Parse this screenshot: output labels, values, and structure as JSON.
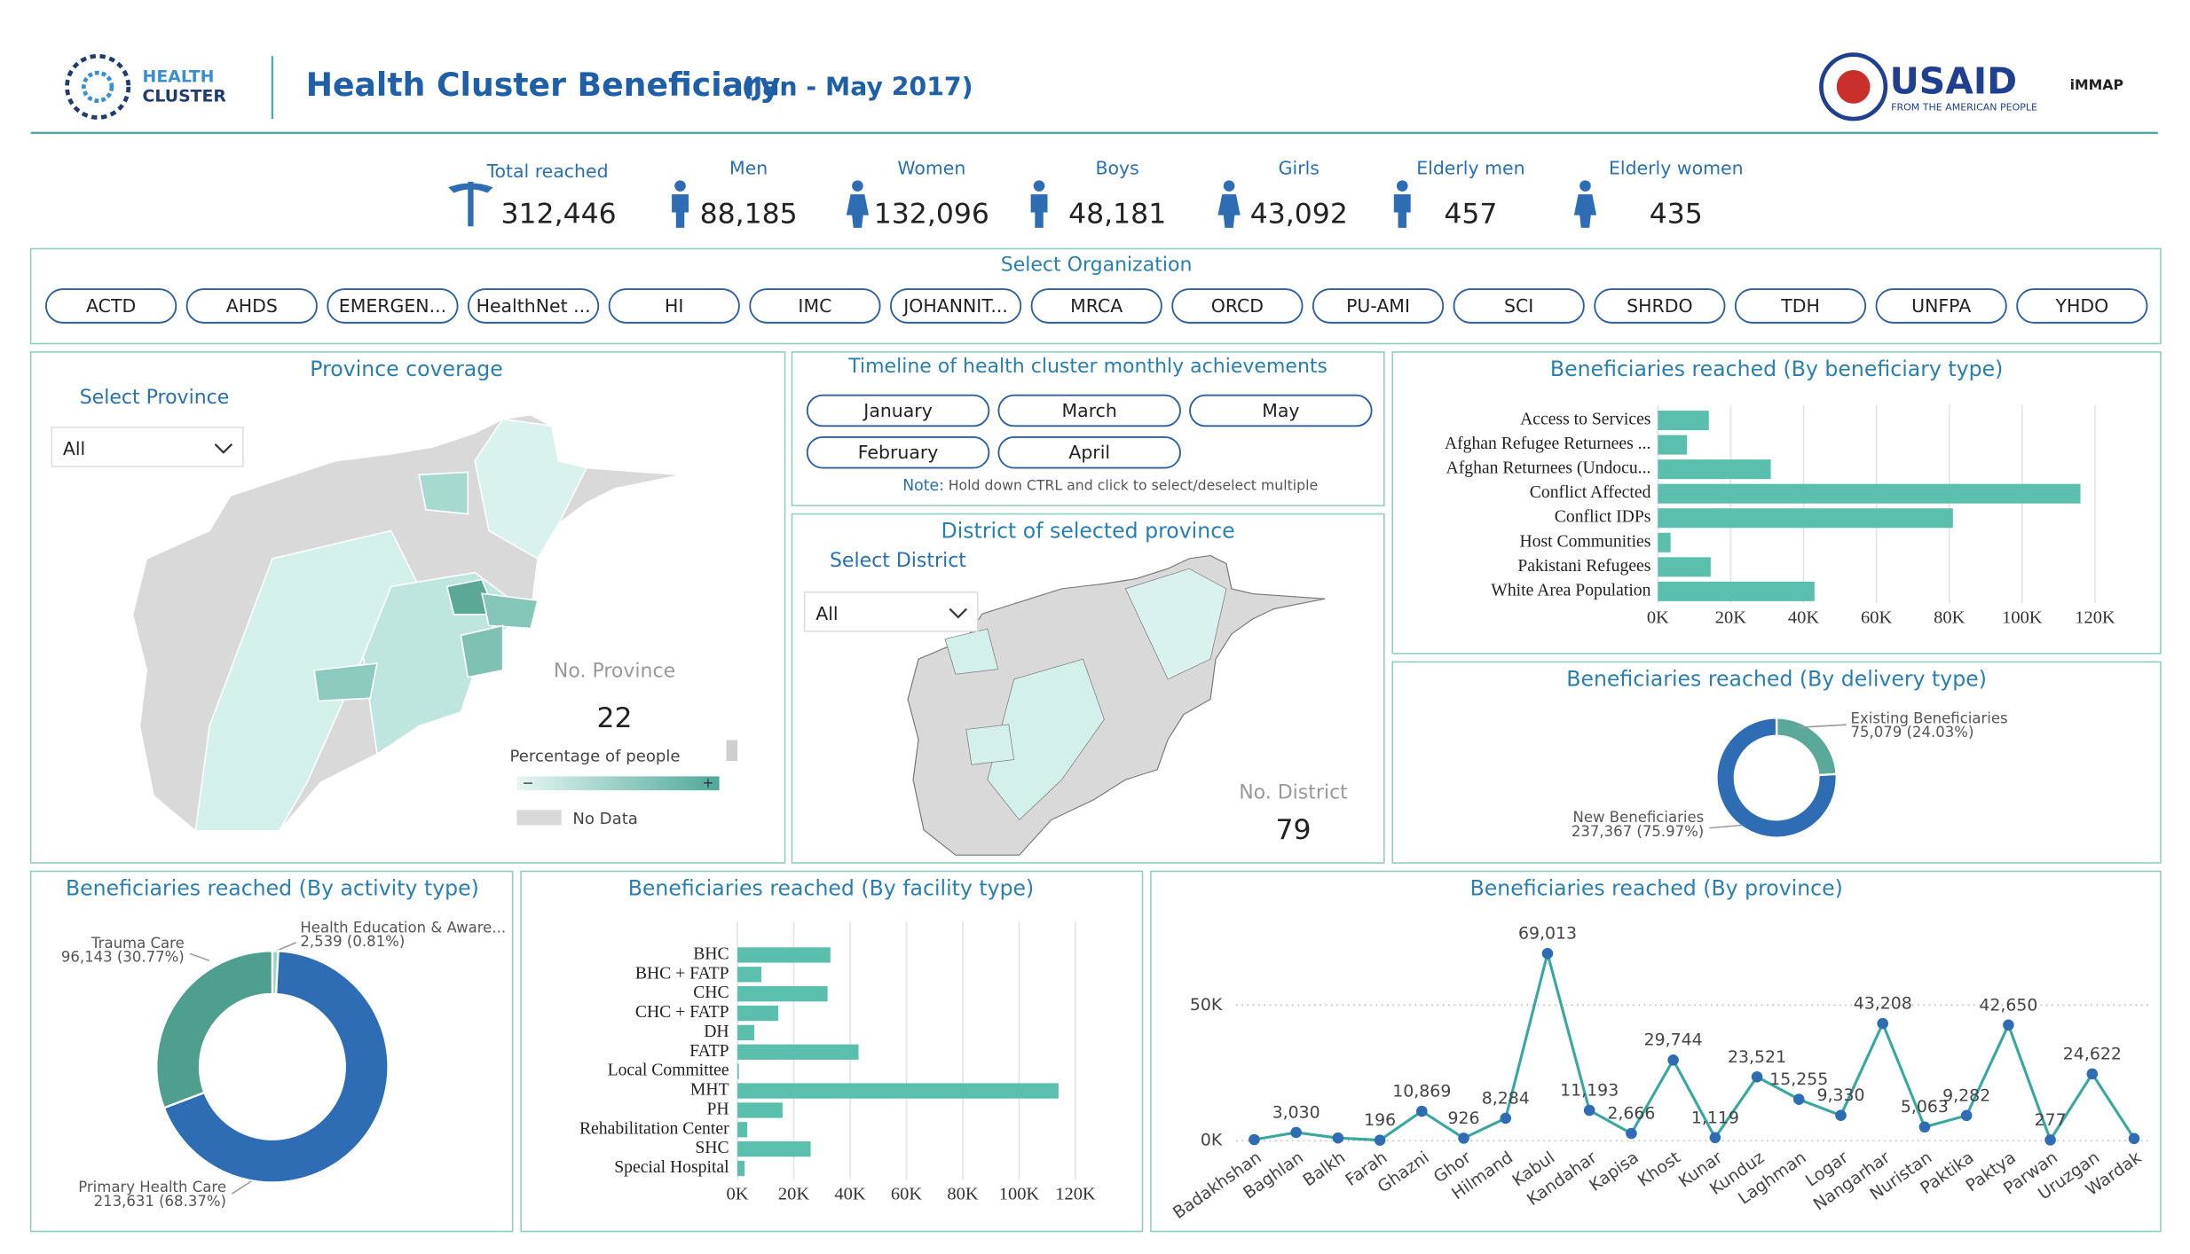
{
  "header": {
    "logo_top": "HEALTH",
    "logo_bottom": "CLUSTER",
    "title": "Health Cluster Beneficiary",
    "subtitle": "(Jan - May 2017)",
    "sponsor": "USAID",
    "sponsor_tagline": "FROM THE AMERICAN PEOPLE",
    "partner": "iMMAP"
  },
  "kpis": [
    {
      "label": "Total reached",
      "value": "312,446"
    },
    {
      "label": "Men",
      "value": "88,185"
    },
    {
      "label": "Women",
      "value": "132,096"
    },
    {
      "label": "Boys",
      "value": "48,181"
    },
    {
      "label": "Girls",
      "value": "43,092"
    },
    {
      "label": "Elderly men",
      "value": "457"
    },
    {
      "label": "Elderly women",
      "value": "435"
    }
  ],
  "organization_filter": {
    "title": "Select Organization",
    "options": [
      "ACTD",
      "AHDS",
      "EMERGEN...",
      "HealthNet ...",
      "HI",
      "IMC",
      "JOHANNIT...",
      "MRCA",
      "ORCD",
      "PU-AMI",
      "SCI",
      "SHRDO",
      "TDH",
      "UNFPA",
      "YHDO"
    ]
  },
  "province_coverage": {
    "title": "Province coverage",
    "select_label": "Select Province",
    "select_value": "All",
    "count_label": "No. Province",
    "count": "22",
    "legend_title": "Percentage of people",
    "legend_min": "−",
    "legend_max": "+",
    "no_data": "No Data"
  },
  "timeline": {
    "title": "Timeline of health cluster monthly achievements",
    "months": [
      "January",
      "March",
      "May",
      "February",
      "April"
    ],
    "note_label": "Note:",
    "note": "Hold down CTRL and click to select/deselect multiple"
  },
  "district": {
    "title": "District of selected province",
    "select_label": "Select District",
    "select_value": "All",
    "count_label": "No. District",
    "count": "79"
  },
  "chart_data": [
    {
      "type": "hbar",
      "title": "Beneficiaries reached (By beneficiary type)",
      "categories": [
        "Access to Services",
        "Afghan Refugee Returnees ...",
        "Afghan Returnees (Undocu...",
        "Conflict Affected",
        "Conflict IDPs",
        "Host Communities",
        "Pakistani Refugees",
        "White Area Population"
      ],
      "values": [
        14000,
        8000,
        31000,
        116000,
        81000,
        3500,
        14500,
        43000
      ],
      "color": "#5bbfad",
      "xlim": [
        0,
        120000
      ],
      "xticks": [
        {
          "value": 0,
          "label": "0K"
        },
        {
          "value": 20000,
          "label": "20K"
        },
        {
          "value": 40000,
          "label": "40K"
        },
        {
          "value": 60000,
          "label": "60K"
        },
        {
          "value": 80000,
          "label": "80K"
        },
        {
          "value": 100000,
          "label": "100K"
        },
        {
          "value": 120000,
          "label": "120K"
        }
      ],
      "grid": true
    },
    {
      "type": "donut",
      "title": "Beneficiaries reached (By delivery type)",
      "categories": [
        "Existing Beneficiaries",
        "New Beneficiaries"
      ],
      "values": [
        75079,
        237367
      ],
      "value_labels": [
        "75,079 (24.03%)",
        "237,367 (75.97%)"
      ],
      "colors": [
        "#5aa897",
        "#2e6db4"
      ]
    },
    {
      "type": "donut",
      "title": "Beneficiaries reached (By activity type)",
      "categories": [
        "Health Education & Aware...",
        "Primary Health Care",
        "Trauma Care"
      ],
      "values": [
        2539,
        213631,
        96143
      ],
      "value_labels": [
        "2,539 (0.81%)",
        "213,631 (68.37%)",
        "96,143 (30.77%)"
      ],
      "colors": [
        "#9ad6c6",
        "#2e6db4",
        "#4f9f8f"
      ]
    },
    {
      "type": "hbar",
      "title": "Beneficiaries reached (By facility type)",
      "categories": [
        "BHC",
        "BHC + FATP",
        "CHC",
        "CHC + FATP",
        "DH",
        "FATP",
        "Local Committee",
        "MHT",
        "PH",
        "Rehabilitation Center",
        "SHC",
        "Special Hospital"
      ],
      "values": [
        33000,
        8500,
        32000,
        14500,
        6000,
        43000,
        500,
        114000,
        16000,
        3500,
        26000,
        2500
      ],
      "color": "#5bbfad",
      "xlim": [
        0,
        120000
      ],
      "xticks": [
        {
          "value": 0,
          "label": "0K"
        },
        {
          "value": 20000,
          "label": "20K"
        },
        {
          "value": 40000,
          "label": "40K"
        },
        {
          "value": 60000,
          "label": "60K"
        },
        {
          "value": 80000,
          "label": "80K"
        },
        {
          "value": 100000,
          "label": "100K"
        },
        {
          "value": 120000,
          "label": "120K"
        }
      ],
      "grid": true
    },
    {
      "type": "line",
      "title": "Beneficiaries reached (By province)",
      "categories": [
        "Badakhshan",
        "Baghlan",
        "Balkh",
        "Farah",
        "Ghazni",
        "Ghor",
        "Hilmand",
        "Kabul",
        "Kandahar",
        "Kapisa",
        "Khost",
        "Kunar",
        "Kunduz",
        "Laghman",
        "Logar",
        "Nangarhar",
        "Nuristan",
        "Paktika",
        "Paktya",
        "Parwan",
        "Uruzgan",
        "Wardak"
      ],
      "values": [
        400,
        3030,
        1000,
        196,
        10869,
        926,
        8284,
        69013,
        11193,
        2666,
        29744,
        1119,
        23521,
        15255,
        9330,
        43208,
        5063,
        9282,
        42650,
        277,
        24622,
        800
      ],
      "value_labels": [
        null,
        "3,030",
        null,
        "196",
        "10,869",
        "926",
        "8,284",
        "69,013",
        "11,193",
        "2,666",
        "29,744",
        "1,119",
        "23,521",
        "15,255",
        "9,330",
        "43,208",
        "5,063",
        "9,282",
        "42,650",
        "277",
        "24,622",
        null
      ],
      "color": "#3aa89e",
      "marker_color": "#2e6db4",
      "ylim": [
        0,
        70000
      ],
      "yticks": [
        {
          "value": 0,
          "label": "0K"
        },
        {
          "value": 50000,
          "label": "50K"
        }
      ],
      "grid": true
    }
  ]
}
